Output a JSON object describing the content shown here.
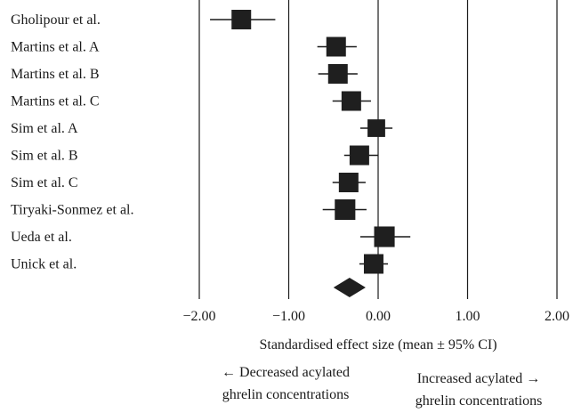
{
  "chart_data": {
    "type": "forest",
    "xlim": [
      -2,
      2
    ],
    "ticks": [
      -2,
      -1,
      0,
      1,
      2
    ],
    "tick_labels": [
      "−2.00",
      "−1.00",
      "0.00",
      "1.00",
      "2.00"
    ],
    "xlabel": "Standardised effect size (mean ± 95% CI)",
    "studies": [
      {
        "name": "Gholipour et al.",
        "effect": -1.53,
        "lower": -1.88,
        "upper": -1.15,
        "weight": 1.0
      },
      {
        "name": "Martins et al. A",
        "effect": -0.47,
        "lower": -0.68,
        "upper": -0.24,
        "weight": 1.0
      },
      {
        "name": "Martins et al. B",
        "effect": -0.45,
        "lower": -0.67,
        "upper": -0.23,
        "weight": 1.0
      },
      {
        "name": "Martins et al. C",
        "effect": -0.3,
        "lower": -0.51,
        "upper": -0.08,
        "weight": 1.0
      },
      {
        "name": "Sim et al. A",
        "effect": -0.02,
        "lower": -0.2,
        "upper": 0.16,
        "weight": 0.9
      },
      {
        "name": "Sim et al. B",
        "effect": -0.21,
        "lower": -0.38,
        "upper": 0.0,
        "weight": 1.0
      },
      {
        "name": "Sim et al. C",
        "effect": -0.33,
        "lower": -0.51,
        "upper": -0.14,
        "weight": 1.0
      },
      {
        "name": "Tiryaki-Sonmez et al.",
        "effect": -0.37,
        "lower": -0.62,
        "upper": -0.13,
        "weight": 1.05
      },
      {
        "name": "Ueda et al.",
        "effect": 0.07,
        "lower": -0.2,
        "upper": 0.36,
        "weight": 1.05
      },
      {
        "name": "Unick et al.",
        "effect": -0.05,
        "lower": -0.21,
        "upper": 0.11,
        "weight": 1.0
      }
    ],
    "summary": {
      "effect": -0.32,
      "lower": -0.5,
      "upper": -0.14
    },
    "annotations": {
      "left": [
        "← Decreased acylated",
        "ghrelin concentrations"
      ],
      "right": [
        "Increased acylated →",
        "ghrelin concentrations"
      ]
    }
  }
}
